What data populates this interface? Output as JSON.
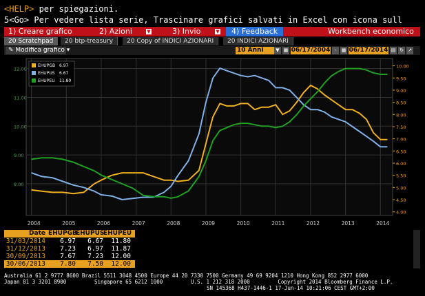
{
  "header": {
    "line1_cmd": "<HELP>",
    "line1_text": " per spiegazioni.",
    "line2": "5<Go> Per vedere lista serie, Trascinare grafici salvati in Excel con icona sull"
  },
  "menu": {
    "creare": "1) Creare grafico",
    "azioni": "2) Azioni",
    "invio": "3) Invio",
    "feedback": "4) Feedback",
    "workbench": "Workbench economico"
  },
  "tabs": [
    {
      "label": "20 Scratchpad"
    },
    {
      "label": "20 btp-treasury"
    },
    {
      "label": "20 Copy of INDICI AZIONARI"
    },
    {
      "label": "20 INDICI AZIONARI"
    }
  ],
  "toolbar": {
    "modifica": "Modifica grafico",
    "period": "10 Anni",
    "start_date": "06/17/2004",
    "end_date": "06/17/2014"
  },
  "chart_data": {
    "type": "line",
    "legend_placement": "top-left",
    "series": [
      {
        "name": "EHUPGB",
        "legend_value": "6.97",
        "color": "#f0b020",
        "axis": "right",
        "x": [
          2004.0,
          2004.3,
          2004.6,
          2004.9,
          2005.2,
          2005.5,
          2005.8,
          2006.0,
          2006.3,
          2006.6,
          2006.9,
          2007.2,
          2007.5,
          2007.8,
          2008.0,
          2008.2,
          2008.5,
          2008.8,
          2009.0,
          2009.2,
          2009.4,
          2009.6,
          2009.8,
          2010.0,
          2010.2,
          2010.4,
          2010.6,
          2010.8,
          2011.0,
          2011.2,
          2011.4,
          2011.6,
          2011.8,
          2012.0,
          2012.2,
          2012.4,
          2012.6,
          2012.8,
          2013.0,
          2013.2,
          2013.4,
          2013.6,
          2013.8,
          2014.0,
          2014.2
        ],
        "values": [
          4.9,
          4.85,
          4.8,
          4.8,
          4.75,
          4.8,
          5.15,
          5.3,
          5.5,
          5.6,
          5.6,
          5.6,
          5.45,
          5.3,
          5.3,
          5.25,
          5.3,
          5.7,
          6.8,
          7.9,
          8.45,
          8.35,
          8.35,
          8.45,
          8.45,
          8.2,
          8.3,
          8.3,
          8.4,
          8.0,
          8.15,
          8.5,
          8.9,
          9.2,
          9.05,
          8.8,
          8.6,
          8.4,
          8.2,
          8.2,
          8.05,
          7.8,
          7.25,
          6.97,
          6.97
        ]
      },
      {
        "name": "EHUPUS",
        "legend_value": "6.67",
        "color": "#80b0e8",
        "axis": "right",
        "x": [
          2004.0,
          2004.3,
          2004.6,
          2004.9,
          2005.2,
          2005.5,
          2005.8,
          2006.0,
          2006.3,
          2006.6,
          2006.9,
          2007.2,
          2007.5,
          2007.8,
          2008.0,
          2008.2,
          2008.5,
          2008.8,
          2009.0,
          2009.2,
          2009.4,
          2009.6,
          2009.8,
          2010.0,
          2010.2,
          2010.4,
          2010.6,
          2010.8,
          2011.0,
          2011.2,
          2011.4,
          2011.6,
          2011.8,
          2012.0,
          2012.2,
          2012.4,
          2012.6,
          2012.8,
          2013.0,
          2013.2,
          2013.4,
          2013.6,
          2013.8,
          2014.0,
          2014.2
        ],
        "values": [
          5.6,
          5.45,
          5.4,
          5.25,
          5.1,
          5.0,
          4.85,
          4.7,
          4.65,
          4.5,
          4.55,
          4.6,
          4.6,
          4.8,
          5.05,
          5.5,
          6.1,
          7.2,
          8.5,
          9.5,
          9.9,
          9.8,
          9.7,
          9.6,
          9.55,
          9.6,
          9.5,
          9.4,
          9.1,
          9.1,
          9.0,
          8.7,
          8.4,
          8.2,
          8.2,
          8.1,
          7.9,
          7.8,
          7.7,
          7.5,
          7.3,
          7.1,
          6.9,
          6.67,
          6.67
        ]
      },
      {
        "name": "EHUPEU",
        "legend_value": "11.80",
        "color": "#20a020",
        "axis": "left",
        "x": [
          2004.0,
          2004.3,
          2004.6,
          2004.9,
          2005.2,
          2005.5,
          2005.8,
          2006.0,
          2006.3,
          2006.6,
          2006.9,
          2007.2,
          2007.5,
          2007.8,
          2008.0,
          2008.2,
          2008.5,
          2008.8,
          2009.0,
          2009.2,
          2009.4,
          2009.6,
          2009.8,
          2010.0,
          2010.2,
          2010.4,
          2010.6,
          2010.8,
          2011.0,
          2011.2,
          2011.4,
          2011.6,
          2011.8,
          2012.0,
          2012.2,
          2012.4,
          2012.6,
          2012.8,
          2013.0,
          2013.2,
          2013.4,
          2013.6,
          2013.8,
          2014.0,
          2014.2
        ],
        "values": [
          8.85,
          8.9,
          8.9,
          8.85,
          8.75,
          8.6,
          8.45,
          8.3,
          8.15,
          8.0,
          7.85,
          7.6,
          7.55,
          7.55,
          7.5,
          7.55,
          7.75,
          8.25,
          8.8,
          9.5,
          9.85,
          9.95,
          10.05,
          10.1,
          10.1,
          10.05,
          10.0,
          10.0,
          9.95,
          10.0,
          10.15,
          10.4,
          10.7,
          10.95,
          11.2,
          11.5,
          11.75,
          11.9,
          12.0,
          12.0,
          12.0,
          11.95,
          11.85,
          11.8,
          11.8
        ]
      }
    ],
    "xlim": [
      2003.85,
      2014.35
    ],
    "xticks": [
      "2004",
      "2005",
      "2006",
      "2007",
      "2008",
      "2009",
      "2010",
      "2011",
      "2012",
      "2013",
      "2014"
    ],
    "ylim_left": [
      6.9,
      12.35
    ],
    "yticks_left": [
      "12.00",
      "11.00",
      "10.00",
      "9.00",
      "8.00"
    ],
    "ylim_right": [
      3.85,
      10.3
    ],
    "yticks_right": [
      "10.00",
      "9.50",
      "9.00",
      "8.50",
      "8.00",
      "7.50",
      "7.00",
      "6.50",
      "6.00",
      "5.50",
      "5.00",
      "4.50",
      "4.00"
    ],
    "grid": true
  },
  "table": {
    "columns": [
      "Date",
      "EHUPGB",
      "EHUPUS",
      "EHUPEU"
    ],
    "rows": [
      [
        "31/03/2014",
        "6.97",
        "6.67",
        "11.80"
      ],
      [
        "31/12/2013",
        "7.23",
        "6.97",
        "11.87"
      ],
      [
        "30/09/2013",
        "7.67",
        "7.23",
        "12.00"
      ],
      [
        "30/06/2013",
        "7.80",
        "7.50",
        "12.00"
      ]
    ]
  },
  "footer": {
    "line1": "Australia 61 2 9777 8600 Brazil 5511 3048 4500 Europe 44 20 7330 7500 Germany 49 69 9204 1210 Hong Kong 852 2977 6000",
    "line2": "Japan 81 3 3201 8900         Singapore 65 6212 1000         U.S. 1 212 318 2000         Copyright 2014 Bloomberg Finance L.P.",
    "line3": "SN 145368 H437-1446-1 17-Jun-14 10:21:06 CEST GMT+2:00"
  }
}
